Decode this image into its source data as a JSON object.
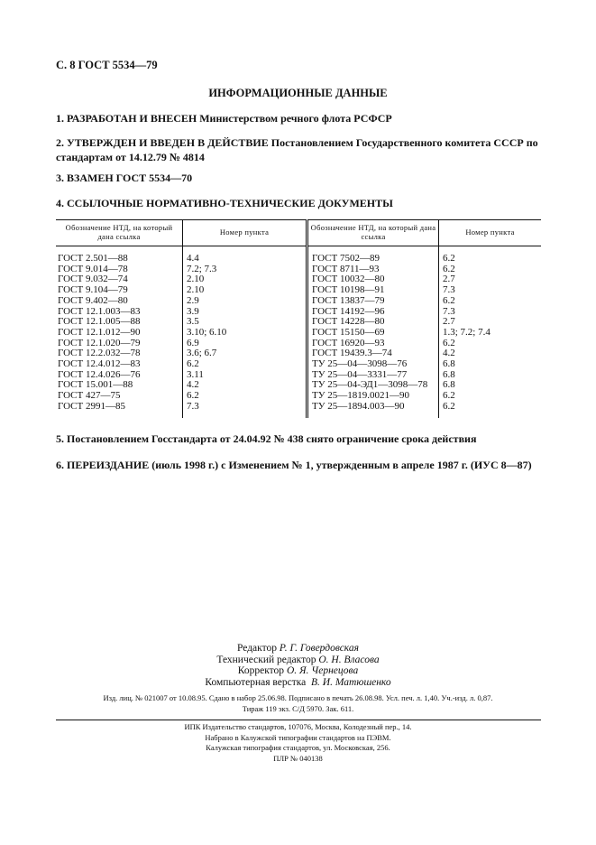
{
  "page_header": "С. 8 ГОСТ 5534—79",
  "title": "ИНФОРМАЦИОННЫЕ ДАННЫЕ",
  "items": [
    {
      "lead": "1. РАЗРАБОТАН И ВНЕСЕН",
      "text": " Министерством речного флота РСФСР"
    },
    {
      "lead": "2. УТВЕРЖДЕН И ВВЕДЕН В ДЕЙСТВИЕ",
      "text": " Постановлением Государственного комитета СССР по стандартам от 14.12.79 № 4814"
    },
    {
      "lead": "3. ВЗАМЕН ГОСТ 5534—70",
      "text": ""
    },
    {
      "lead": "4. ССЫЛОЧНЫЕ НОРМАТИВНО-ТЕХНИЧЕСКИЕ ДОКУМЕНТЫ",
      "text": ""
    }
  ],
  "table": {
    "headers": [
      "Обозначение НТД, на который дана ссылка",
      "Номер пункта",
      "Обозначение НТД, на который дана ссылка",
      "Номер пункта"
    ],
    "rows": [
      [
        "ГОСТ 2.501—88",
        "4.4",
        "ГОСТ 7502—89",
        "6.2"
      ],
      [
        "ГОСТ 9.014—78",
        "7.2; 7.3",
        "ГОСТ 8711—93",
        "6.2"
      ],
      [
        "ГОСТ 9.032—74",
        "2.10",
        "ГОСТ 10032—80",
        "2.7"
      ],
      [
        "ГОСТ 9.104—79",
        "2.10",
        "ГОСТ 10198—91",
        "7.3"
      ],
      [
        "ГОСТ 9.402—80",
        "2.9",
        "ГОСТ 13837—79",
        "6.2"
      ],
      [
        "ГОСТ 12.1.003—83",
        "3.9",
        "ГОСТ 14192—96",
        "7.3"
      ],
      [
        "ГОСТ 12.1.005—88",
        "3.5",
        "ГОСТ 14228—80",
        "2.7"
      ],
      [
        "ГОСТ 12.1.012—90",
        "3.10; 6.10",
        "ГОСТ 15150—69",
        "1.3; 7.2; 7.4"
      ],
      [
        "ГОСТ 12.1.020—79",
        "6.9",
        "ГОСТ 16920—93",
        "6.2"
      ],
      [
        "ГОСТ 12.2.032—78",
        "3.6; 6.7",
        "ГОСТ 19439.3—74",
        "4.2"
      ],
      [
        "ГОСТ 12.4.012—83",
        "6.2",
        "ТУ 25—04—3098—76",
        "6.8"
      ],
      [
        "ГОСТ 12.4.026—76",
        "3.11",
        "ТУ 25—04—3331—77",
        "6.8"
      ],
      [
        "ГОСТ 15.001—88",
        "4.2",
        "ТУ 25—04-ЭД1—3098—78",
        "6.8"
      ],
      [
        "ГОСТ 427—75",
        "6.2",
        "ТУ 25—1819.0021—90",
        "6.2"
      ],
      [
        "ГОСТ 2991—85",
        "7.3",
        "ТУ 25—1894.003—90",
        "6.2"
      ]
    ]
  },
  "item5": "5. Постановлением Госстандарта от 24.04.92 № 438 снято ограничение срока действия",
  "item6": "6. ПЕРЕИЗДАНИЕ (июль 1998 г.) с Изменением № 1, утвержденным в апреле 1987 г. (ИУС 8—87)",
  "credits": [
    {
      "role": "Редактор",
      "name": "Р. Г. Говердовская"
    },
    {
      "role": "Технический редактор",
      "name": "О. Н. Власова"
    },
    {
      "role": "Корректор",
      "name": "О. Я. Чернецова"
    },
    {
      "role": "Компьютерная верстка",
      "name": "В. И. Матюшенко"
    }
  ],
  "imprint": [
    "Изд. лиц. № 021007 от 10.08.95. Сдано в набор 25.06.98. Подписано в печать 26.08.98. Усл. печ. л. 1,40. Уч.-изд. л. 0,87.",
    "Тираж 119 экз. С/Д 5970. Зак. 611."
  ],
  "publisher": [
    "ИПК Издательство стандартов, 107076, Москва, Колодезный пер., 14.",
    "Набрано в Калужской типографии стандартов на ПЭВМ.",
    "Калужская типография стандартов, ул. Московская, 256.",
    "ПЛР № 040138"
  ]
}
